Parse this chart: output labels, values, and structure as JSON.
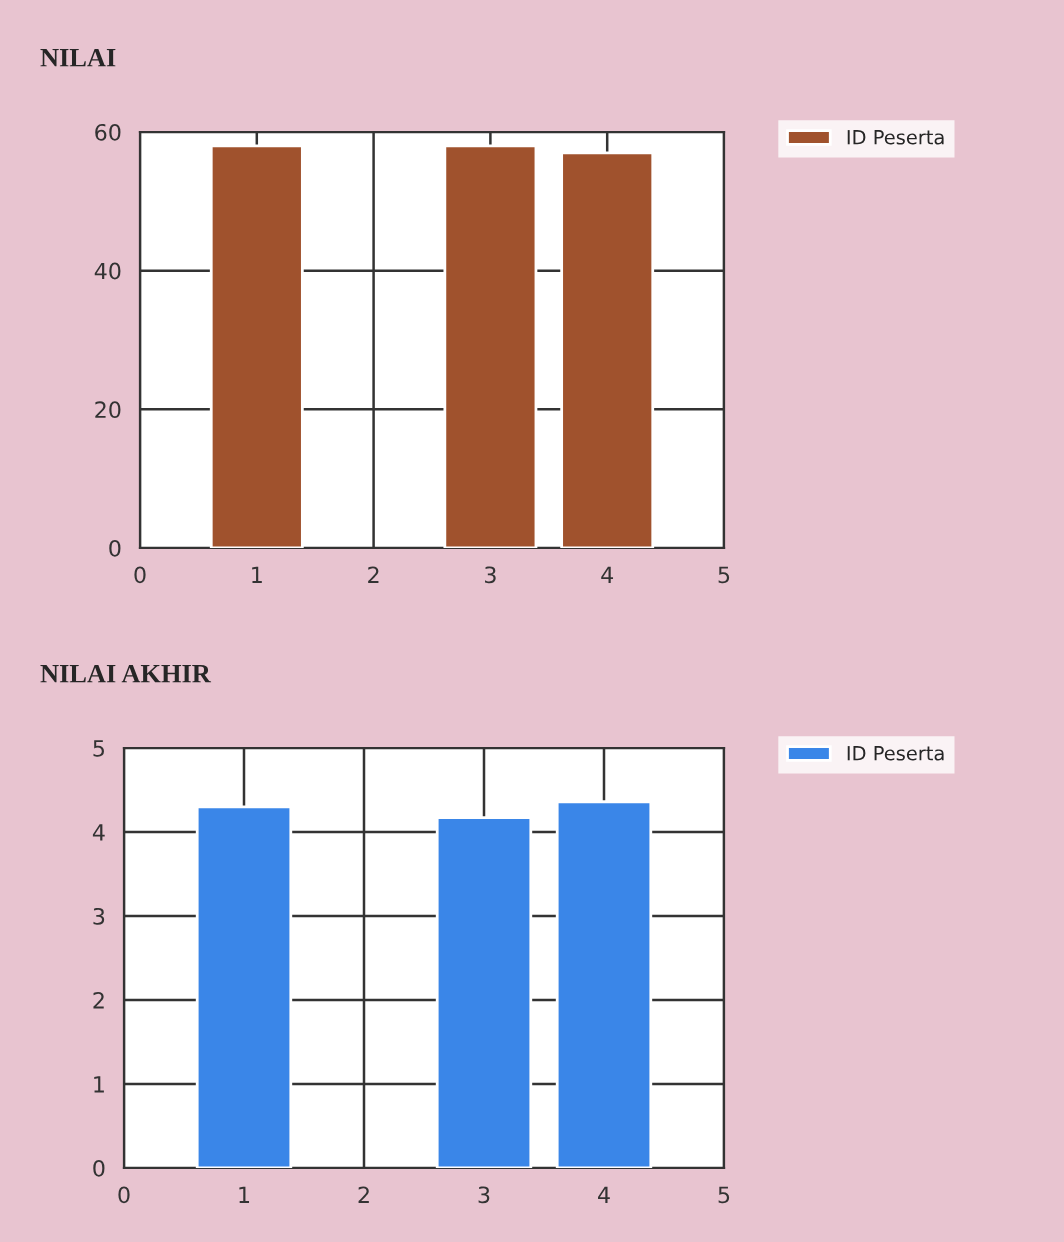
{
  "chart_data": [
    {
      "type": "bar",
      "title": "NILAI",
      "x": [
        1,
        3,
        4
      ],
      "series": [
        {
          "name": "ID Peserta",
          "color": "#a0522d",
          "values": [
            58,
            58,
            57
          ]
        }
      ],
      "xlim": [
        0,
        5
      ],
      "xticks": [
        0,
        1,
        2,
        3,
        4,
        5
      ],
      "ylim": [
        0,
        60
      ],
      "yticks": [
        0,
        20,
        40,
        60
      ],
      "grid": true,
      "legend": "top right"
    },
    {
      "type": "bar",
      "title": "NILAI AKHIR",
      "x": [
        1,
        3,
        4
      ],
      "series": [
        {
          "name": "ID Peserta",
          "color": "#3a86e8",
          "values": [
            4.3,
            4.17,
            4.36
          ]
        }
      ],
      "xlim": [
        0,
        5
      ],
      "xticks": [
        0,
        1,
        2,
        3,
        4,
        5
      ],
      "ylim": [
        0,
        5
      ],
      "yticks": [
        0,
        1,
        2,
        3,
        4,
        5
      ],
      "grid": true,
      "legend": "top right"
    }
  ]
}
